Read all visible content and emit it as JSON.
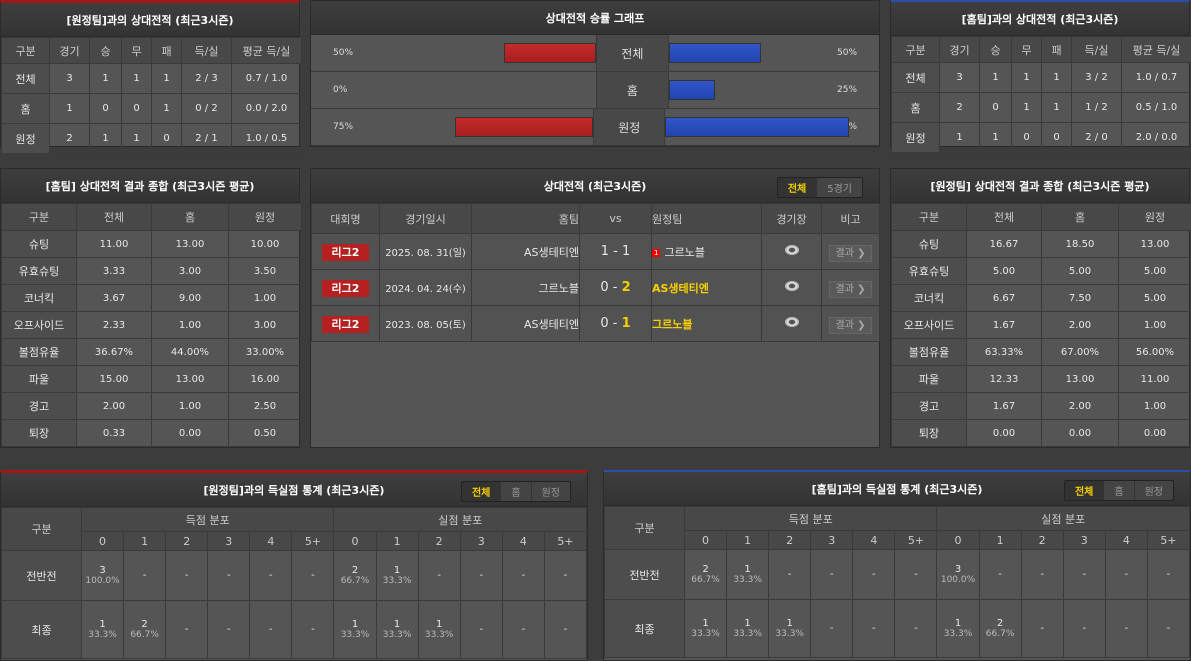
{
  "away_record": {
    "title": "[원정팀]과의 상대전적 (최근3시즌)",
    "headers": [
      "구분",
      "경기",
      "승",
      "무",
      "패",
      "득/실",
      "평균 득/실"
    ],
    "rows": [
      [
        "전체",
        "3",
        "1",
        "1",
        "1",
        "2 / 3",
        "0.7 / 1.0"
      ],
      [
        "홈",
        "1",
        "0",
        "0",
        "1",
        "0 / 2",
        "0.0 / 2.0"
      ],
      [
        "원정",
        "2",
        "1",
        "1",
        "0",
        "2 / 1",
        "1.0 / 0.5"
      ]
    ]
  },
  "home_record": {
    "title": "[홈팀]과의 상대전적 (최근3시즌)",
    "headers": [
      "구분",
      "경기",
      "승",
      "무",
      "패",
      "득/실",
      "평균 득/실"
    ],
    "rows": [
      [
        "전체",
        "3",
        "1",
        "1",
        "1",
        "3 / 2",
        "1.0 / 0.7"
      ],
      [
        "홈",
        "2",
        "0",
        "1",
        "1",
        "1 / 2",
        "0.5 / 1.0"
      ],
      [
        "원정",
        "1",
        "1",
        "0",
        "0",
        "2 / 0",
        "2.0 / 0.0"
      ]
    ]
  },
  "win_graph": {
    "title": "상대전적 승률 그래프",
    "colors": {
      "home": "#b52020",
      "away": "#2a4fc0"
    },
    "rows": [
      {
        "label": "전체",
        "left": "50%",
        "left_value": 50,
        "right": "50%",
        "right_value": 50
      },
      {
        "label": "홈",
        "left": "0%",
        "left_value": 0,
        "right": "25%",
        "right_value": 25
      },
      {
        "label": "원정",
        "left": "75%",
        "left_value": 75,
        "right": "100%",
        "right_value": 100
      }
    ]
  },
  "home_summary": {
    "title": "[홈팀] 상대전적 결과 종합 (최근3시즌 평균)",
    "headers": [
      "구분",
      "전체",
      "홈",
      "원정"
    ],
    "rows": [
      [
        "슈팅",
        "11.00",
        "13.00",
        "10.00"
      ],
      [
        "유효슈팅",
        "3.33",
        "3.00",
        "3.50"
      ],
      [
        "코너킥",
        "3.67",
        "9.00",
        "1.00"
      ],
      [
        "오프사이드",
        "2.33",
        "1.00",
        "3.00"
      ],
      [
        "볼점유율",
        "36.67%",
        "44.00%",
        "33.00%"
      ],
      [
        "파울",
        "15.00",
        "13.00",
        "16.00"
      ],
      [
        "경고",
        "2.00",
        "1.00",
        "2.50"
      ],
      [
        "퇴장",
        "0.33",
        "0.00",
        "0.50"
      ]
    ]
  },
  "away_summary": {
    "title": "[원정팀] 상대전적 결과 종합 (최근3시즌 평균)",
    "headers": [
      "구분",
      "전체",
      "홈",
      "원정"
    ],
    "rows": [
      [
        "슈팅",
        "16.67",
        "18.50",
        "13.00"
      ],
      [
        "유효슈팅",
        "5.00",
        "5.00",
        "5.00"
      ],
      [
        "코너킥",
        "6.67",
        "7.50",
        "5.00"
      ],
      [
        "오프사이드",
        "1.67",
        "2.00",
        "1.00"
      ],
      [
        "볼점유율",
        "63.33%",
        "67.00%",
        "56.00%"
      ],
      [
        "파울",
        "12.33",
        "13.00",
        "11.00"
      ],
      [
        "경고",
        "1.67",
        "2.00",
        "1.00"
      ],
      [
        "퇴장",
        "0.00",
        "0.00",
        "0.00"
      ]
    ]
  },
  "matches": {
    "title": "상대전적 (최근3시즌)",
    "tabs": [
      "전체",
      "5경기"
    ],
    "headers": [
      "대회명",
      "경기일시",
      "홈팀",
      "vs",
      "원정팀",
      "경기장",
      "비고"
    ],
    "rows": [
      {
        "league": "리그2",
        "date": "2025. 08. 31(일)",
        "home": "AS생테티엔",
        "hs": "1",
        "as": "1",
        "away": "그르노블",
        "red_card": "1",
        "winner": "none",
        "result": "결과 ❯",
        "stadium_icon": "stadium-icon"
      },
      {
        "league": "리그2",
        "date": "2024. 04. 24(수)",
        "home": "그르노블",
        "hs": "0",
        "as": "2",
        "away": "AS생테티엔",
        "red_card": "",
        "winner": "away",
        "result": "결과 ❯",
        "stadium_icon": "stadium-icon"
      },
      {
        "league": "리그2",
        "date": "2023. 08. 05(토)",
        "home": "AS생테티엔",
        "hs": "0",
        "as": "1",
        "away": "그르노블",
        "red_card": "",
        "winner": "away",
        "result": "결과 ❯",
        "stadium_icon": "stadium-icon"
      }
    ]
  },
  "away_goals": {
    "title": "[원정팀]과의 득실점 통계 (최근3시즌)",
    "tabs": [
      "전체",
      "홈",
      "원정"
    ],
    "col_label": "구분",
    "scored": "득점 분포",
    "conceded": "실점 분포",
    "buckets": [
      "0",
      "1",
      "2",
      "3",
      "4",
      "5+"
    ],
    "rows": [
      {
        "label": "전반전",
        "cells": [
          [
            "3",
            "100.0%"
          ],
          [
            "-"
          ],
          [
            "-"
          ],
          [
            "-"
          ],
          [
            "-"
          ],
          [
            "-"
          ],
          [
            "2",
            "66.7%"
          ],
          [
            "1",
            "33.3%"
          ],
          [
            "-"
          ],
          [
            "-"
          ],
          [
            "-"
          ],
          [
            "-"
          ]
        ]
      },
      {
        "label": "최종",
        "cells": [
          [
            "1",
            "33.3%"
          ],
          [
            "2",
            "66.7%"
          ],
          [
            "-"
          ],
          [
            "-"
          ],
          [
            "-"
          ],
          [
            "-"
          ],
          [
            "1",
            "33.3%"
          ],
          [
            "1",
            "33.3%"
          ],
          [
            "1",
            "33.3%"
          ],
          [
            "-"
          ],
          [
            "-"
          ],
          [
            "-"
          ]
        ]
      }
    ]
  },
  "home_goals": {
    "title": "[홈팀]과의 득실점 통계 (최근3시즌)",
    "tabs": [
      "전체",
      "홈",
      "원정"
    ],
    "col_label": "구분",
    "scored": "득점 분포",
    "conceded": "실점 분포",
    "buckets": [
      "0",
      "1",
      "2",
      "3",
      "4",
      "5+"
    ],
    "rows": [
      {
        "label": "전반전",
        "cells": [
          [
            "2",
            "66.7%"
          ],
          [
            "1",
            "33.3%"
          ],
          [
            "-"
          ],
          [
            "-"
          ],
          [
            "-"
          ],
          [
            "-"
          ],
          [
            "3",
            "100.0%"
          ],
          [
            "-"
          ],
          [
            "-"
          ],
          [
            "-"
          ],
          [
            "-"
          ],
          [
            "-"
          ]
        ]
      },
      {
        "label": "최종",
        "cells": [
          [
            "1",
            "33.3%"
          ],
          [
            "1",
            "33.3%"
          ],
          [
            "1",
            "33.3%"
          ],
          [
            "-"
          ],
          [
            "-"
          ],
          [
            "-"
          ],
          [
            "1",
            "33.3%"
          ],
          [
            "2",
            "66.7%"
          ],
          [
            "-"
          ],
          [
            "-"
          ],
          [
            "-"
          ],
          [
            "-"
          ]
        ]
      }
    ]
  }
}
